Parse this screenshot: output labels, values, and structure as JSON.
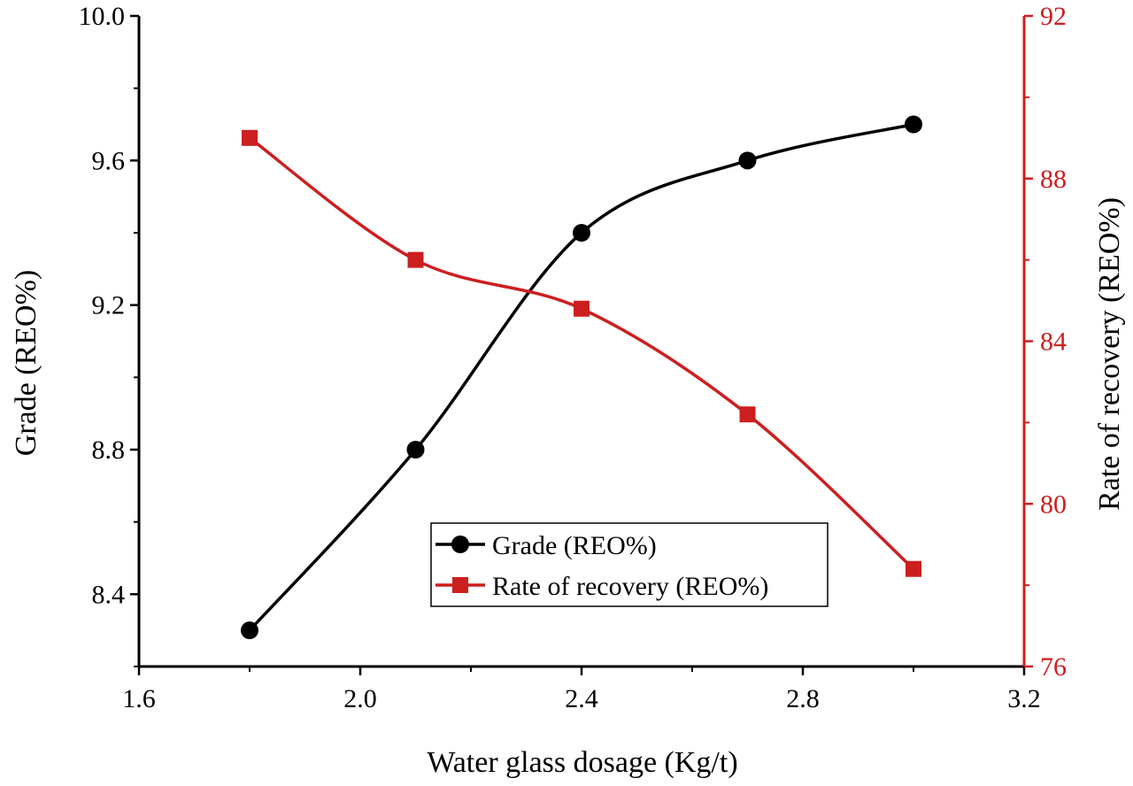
{
  "chart_data": {
    "type": "line",
    "title": "",
    "xlabel": "Water glass dosage (Kg/t)",
    "ylabel": "Grade (REO%)",
    "y2label": "Rate of recovery (REO%)",
    "xlim": [
      1.6,
      3.2
    ],
    "ylim": [
      8.2,
      10.0
    ],
    "y2lim": [
      76,
      92
    ],
    "xticks": [
      "1.6",
      "2.0",
      "2.4",
      "2.8",
      "3.2"
    ],
    "yticks": [
      "8.4",
      "8.8",
      "9.2",
      "9.6",
      "10.0"
    ],
    "y2ticks": [
      "76",
      "80",
      "84",
      "88",
      "92"
    ],
    "grid": false,
    "legend_position": "lower-center",
    "series": [
      {
        "name": "Grade (REO%)",
        "axis": "left",
        "marker": "circle",
        "color": "#000000",
        "x": [
          1.8,
          2.1,
          2.4,
          2.7,
          3.0
        ],
        "values": [
          8.3,
          8.8,
          9.4,
          9.6,
          9.7
        ]
      },
      {
        "name": "Rate of recovery (REO%)",
        "axis": "right",
        "marker": "square",
        "color": "#cc1f1f",
        "x": [
          1.8,
          2.1,
          2.4,
          2.7,
          3.0
        ],
        "values": [
          89.0,
          86.0,
          84.8,
          82.2,
          78.4
        ]
      }
    ]
  },
  "colors": {
    "left_axis": "#000000",
    "right_axis": "#cc1f1f"
  }
}
